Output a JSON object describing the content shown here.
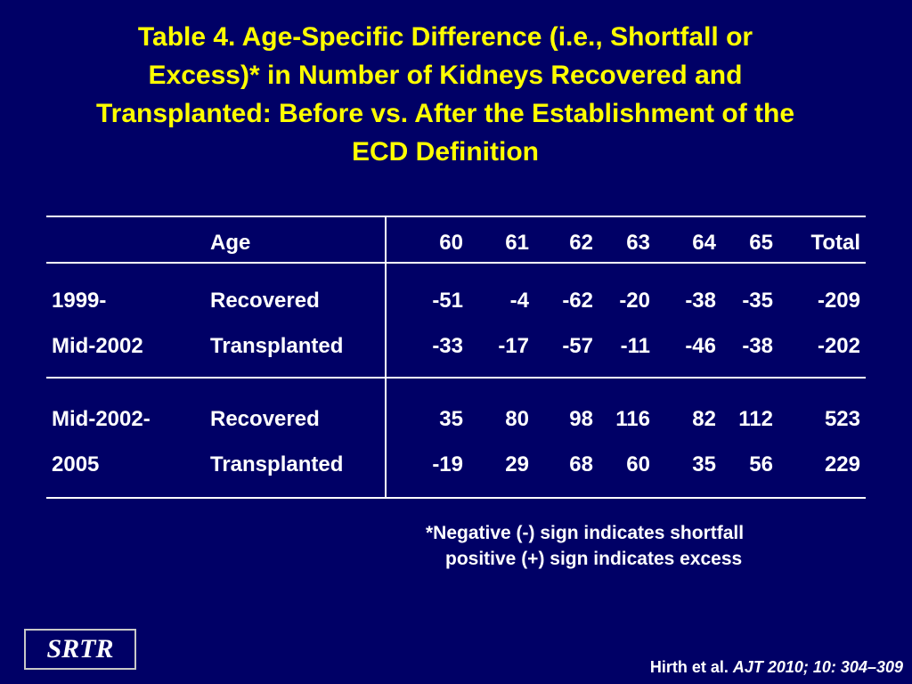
{
  "title": {
    "line1": "Table 4. Age-Specific Difference (i.e., Shortfall or",
    "line2": "Excess)* in Number of Kidneys Recovered and",
    "line3": "Transplanted: Before vs. After the Establishment of the",
    "line4": "ECD Definition"
  },
  "table": {
    "header": {
      "age_label": "Age",
      "ages": [
        "60",
        "61",
        "62",
        "63",
        "64",
        "65"
      ],
      "total": "Total"
    },
    "group1": {
      "period_line1": "1999-",
      "period_line2": "Mid-2002",
      "row1": {
        "label": "Recovered",
        "values": [
          "-51",
          "-4",
          "-62",
          "-20",
          "-38",
          "-35"
        ],
        "total": "-209"
      },
      "row2": {
        "label": "Transplanted",
        "values": [
          "-33",
          "-17",
          "-57",
          "-11",
          "-46",
          "-38"
        ],
        "total": "-202"
      }
    },
    "group2": {
      "period_line1": "Mid-2002-",
      "period_line2": "2005",
      "row1": {
        "label": "Recovered",
        "values": [
          "35",
          "80",
          "98",
          "116",
          "82",
          "112"
        ],
        "total": "523"
      },
      "row2": {
        "label": "Transplanted",
        "values": [
          "-19",
          "29",
          "68",
          "60",
          "35",
          "56"
        ],
        "total": "229"
      }
    }
  },
  "footnote": {
    "line1": "*Negative (-) sign indicates shortfall",
    "line2": "positive (+) sign indicates excess"
  },
  "logo": "SRTR",
  "citation": {
    "authors": "Hirth et al.",
    "journal": "AJT 2010; 10: 304–309"
  }
}
